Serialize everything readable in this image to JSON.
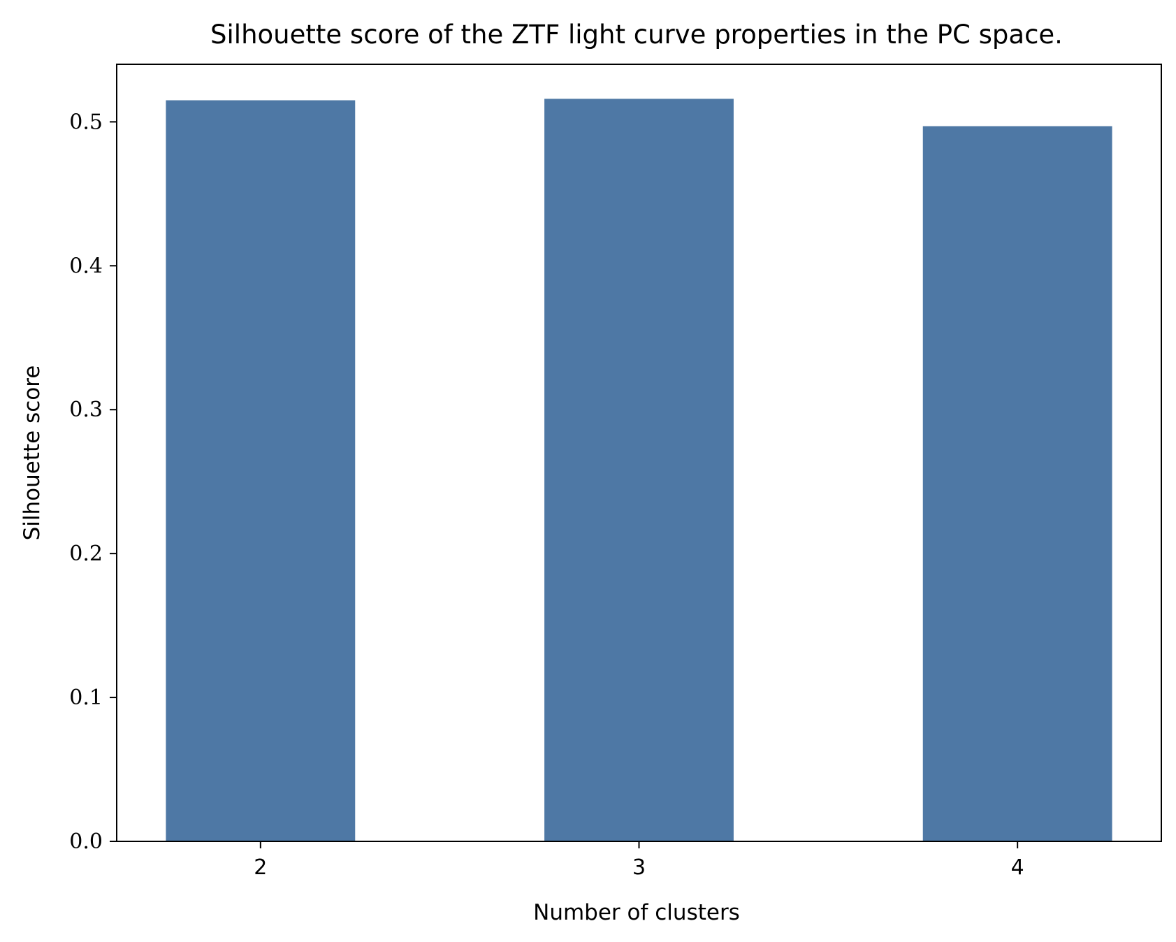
{
  "chart_data": {
    "type": "bar",
    "title": "Silhouette score of the ZTF light curve properties in the PC space.",
    "xlabel": "Number of clusters",
    "ylabel": "Silhouette score",
    "categories": [
      "2",
      "3",
      "4"
    ],
    "values": [
      0.515,
      0.516,
      0.497
    ],
    "ylim": [
      0,
      0.54
    ],
    "yticks": [
      "0.0",
      "0.1",
      "0.2",
      "0.3",
      "0.4",
      "0.5"
    ],
    "grid": false,
    "legend": "none",
    "bar_color": "#4e78a5"
  }
}
